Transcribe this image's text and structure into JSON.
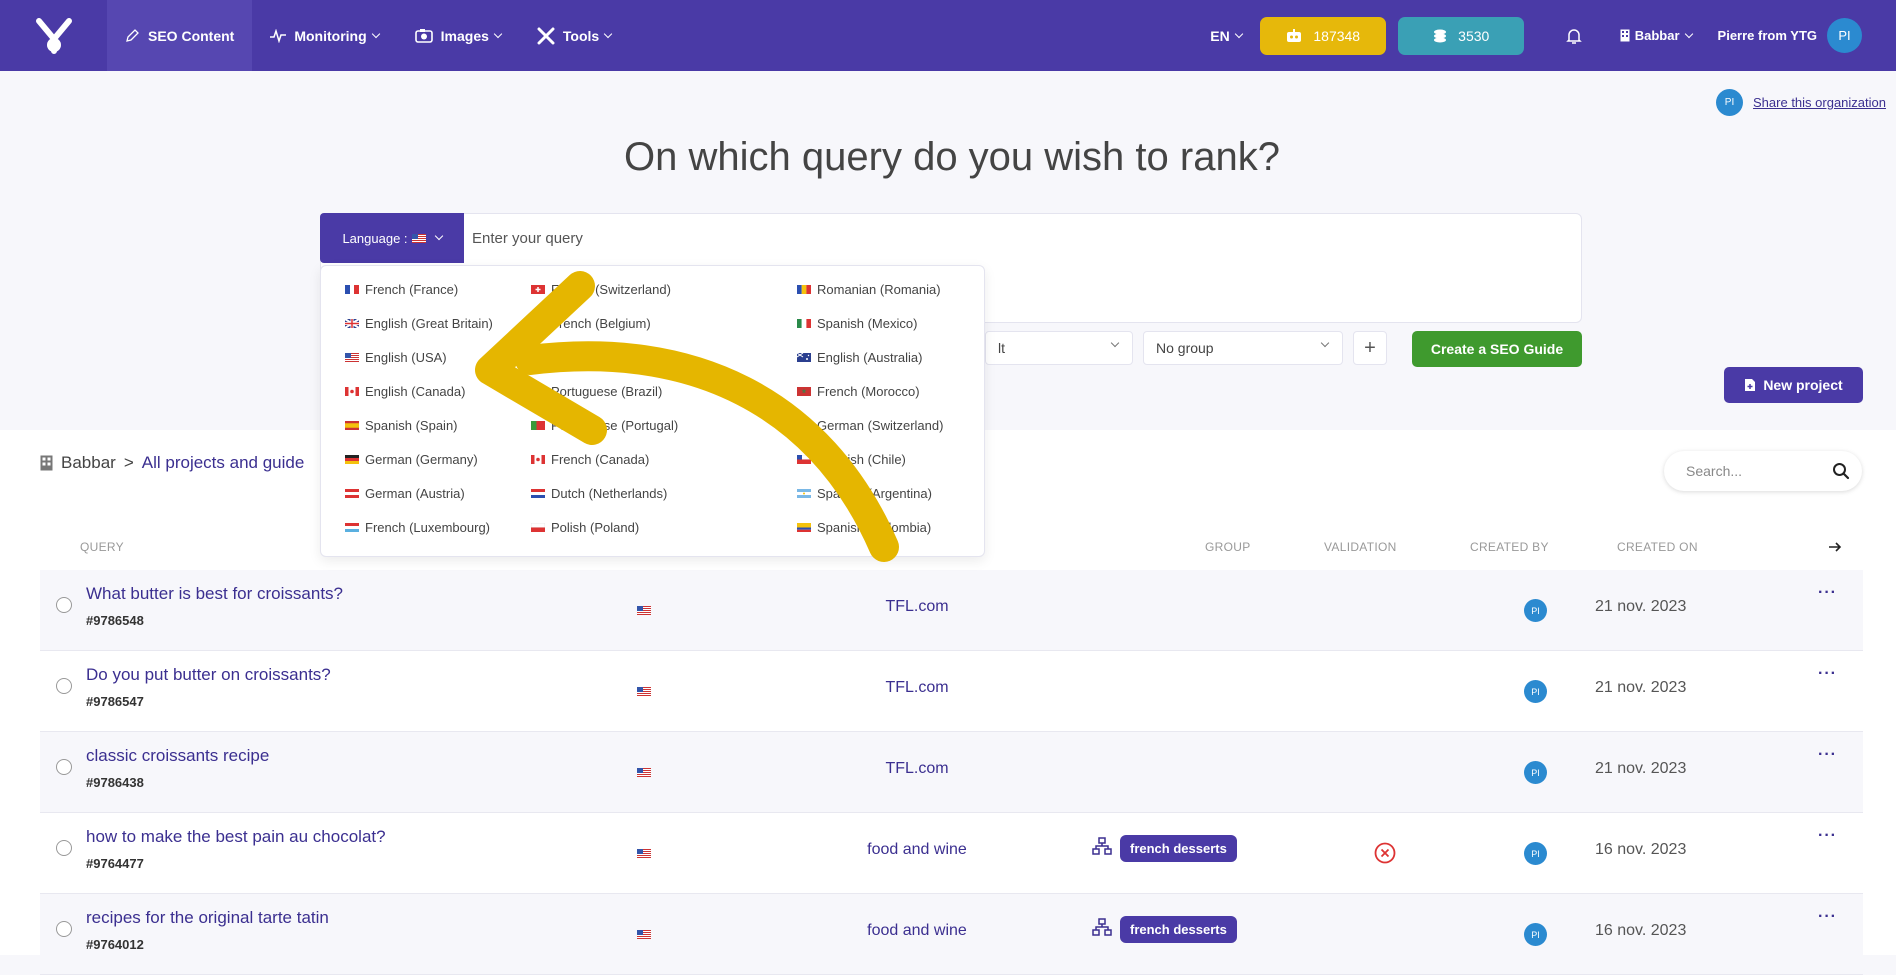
{
  "topbar": {
    "nav": [
      {
        "label": "SEO Content",
        "icon": "pencil-icon"
      },
      {
        "label": "Monitoring",
        "icon": "pulse-icon"
      },
      {
        "label": "Images",
        "icon": "camera-icon"
      },
      {
        "label": "Tools",
        "icon": "tools-icon"
      }
    ],
    "lang": "EN",
    "credits_1": "187348",
    "credits_2": "3530",
    "org": "Babbar",
    "user": "Pierre from YTG",
    "avatar": "PI"
  },
  "share": {
    "label": "Share this organization",
    "avatar": "PI"
  },
  "hero": {
    "title": "On which query do you wish to rank?"
  },
  "query": {
    "lang_label": "Language :",
    "placeholder": "Enter your query"
  },
  "selects": {
    "project_partial": "lt",
    "group": "No group"
  },
  "buttons": {
    "create": "Create a SEO Guide",
    "new_project": "New project",
    "plus": "+"
  },
  "breadcrumb": {
    "root": "Babbar",
    "sep": ">",
    "current": "All projects and guide"
  },
  "search": {
    "placeholder": "Search..."
  },
  "table": {
    "headers": {
      "query": "QUERY",
      "group": "GROUP",
      "validation": "VALIDATION",
      "created_by": "CREATED BY",
      "created_on": "CREATED ON"
    },
    "rows": [
      {
        "query": "What butter is best for croissants?",
        "id": "#9786548",
        "project": "TFL.com",
        "group": "",
        "validation": "",
        "created_by": "PI",
        "date": "21 nov. 2023"
      },
      {
        "query": "Do you put butter on croissants?",
        "id": "#9786547",
        "project": "TFL.com",
        "group": "",
        "validation": "",
        "created_by": "PI",
        "date": "21 nov. 2023"
      },
      {
        "query": "classic croissants recipe",
        "id": "#9786438",
        "project": "TFL.com",
        "group": "",
        "validation": "",
        "created_by": "PI",
        "date": "21 nov. 2023"
      },
      {
        "query": "how to make the best pain au chocolat?",
        "id": "#9764477",
        "project": "food and wine",
        "group": "french desserts",
        "validation": "rejected",
        "created_by": "PI",
        "date": "16 nov. 2023"
      },
      {
        "query": "recipes for the original tarte tatin",
        "id": "#9764012",
        "project": "food and wine",
        "group": "french desserts",
        "validation": "",
        "created_by": "PI",
        "date": "16 nov. 2023"
      }
    ],
    "row_action": "···"
  },
  "languages": {
    "col1": [
      "French (France)",
      "English (Great Britain)",
      "English (USA)",
      "English (Canada)",
      "Spanish (Spain)",
      "German (Germany)",
      "German (Austria)",
      "French (Luxembourg)"
    ],
    "col2": [
      "French (Switzerland)",
      "French (Belgium)",
      "",
      "Portuguese (Brazil)",
      "Portuguese (Portugal)",
      "French (Canada)",
      "Dutch (Netherlands)",
      "Polish (Poland)"
    ],
    "col3": [
      "Romanian (Romania)",
      "Spanish (Mexico)",
      "English (Australia)",
      "French (Morocco)",
      "German (Switzerland)",
      "Spanish (Chile)",
      "Spanish (Argentina)",
      "Spanish (Colombia)"
    ]
  },
  "colors": {
    "primary": "#4a3aa6",
    "gold": "#e6b80b",
    "teal": "#3aa0b5",
    "green": "#3f9a2e",
    "arrow": "#e5b600"
  }
}
